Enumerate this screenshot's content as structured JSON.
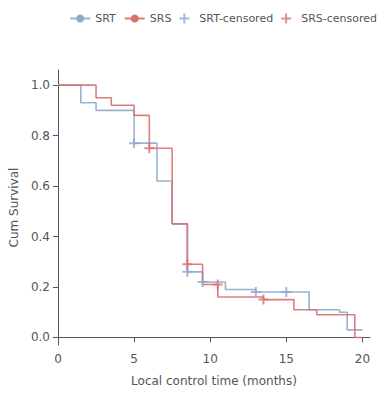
{
  "chart_data": {
    "type": "line",
    "title": "",
    "xlabel": "Local control time (months)",
    "ylabel": "Cum Survival",
    "xlim": [
      0,
      20.5
    ],
    "ylim": [
      -0.03,
      1.06
    ],
    "xticks": [
      0,
      5,
      10,
      15,
      20
    ],
    "yticks": [
      {
        "value": 0.0,
        "label": "0.0"
      },
      0.2,
      0.4,
      0.6,
      0.8,
      {
        "value": 1.0,
        "label": "1.0"
      }
    ],
    "grid": false,
    "legend": "upper right",
    "series": [
      {
        "name": "SRT",
        "type": "line",
        "line_style": "step",
        "color": "#8FA8CC",
        "x": [
          0,
          1.0,
          1.5,
          2.0,
          2.5,
          3.0,
          4.0,
          5.0,
          6.5,
          7.5,
          8.5,
          9.0,
          9.5,
          11.0,
          12.0,
          13.0,
          15.0,
          16.5,
          18.5,
          19.0,
          20.0
        ],
        "values": [
          1.0,
          1.0,
          0.93,
          0.93,
          0.9,
          0.9,
          0.9,
          0.77,
          0.62,
          0.45,
          0.26,
          0.26,
          0.22,
          0.19,
          0.19,
          0.18,
          0.18,
          0.11,
          0.1,
          0.03,
          0.03
        ]
      },
      {
        "name": "SRS",
        "type": "line",
        "line_style": "step",
        "color": "#D97070",
        "x": [
          0,
          1.5,
          2.5,
          3.5,
          5.0,
          6.0,
          6.5,
          7.5,
          8.5,
          9.5,
          10.5,
          13.5,
          15.5,
          17.0,
          18.5,
          19.5,
          20.0
        ],
        "values": [
          1.0,
          1.0,
          0.95,
          0.92,
          0.88,
          0.75,
          0.75,
          0.45,
          0.29,
          0.21,
          0.16,
          0.15,
          0.11,
          0.09,
          0.09,
          0.0,
          0.0
        ]
      },
      {
        "name": "SRT-censored",
        "type": "scatter",
        "marker": "plus",
        "color": "#8FA8CC",
        "x": [
          5.0,
          8.5,
          9.5,
          13.0,
          15.0
        ],
        "values": [
          0.77,
          0.26,
          0.22,
          0.18,
          0.18
        ]
      },
      {
        "name": "SRS-censored",
        "type": "scatter",
        "marker": "plus",
        "color": "#D97070",
        "x": [
          6.0,
          8.5,
          10.5,
          13.5
        ],
        "values": [
          0.75,
          0.29,
          0.21,
          0.15
        ]
      }
    ]
  }
}
